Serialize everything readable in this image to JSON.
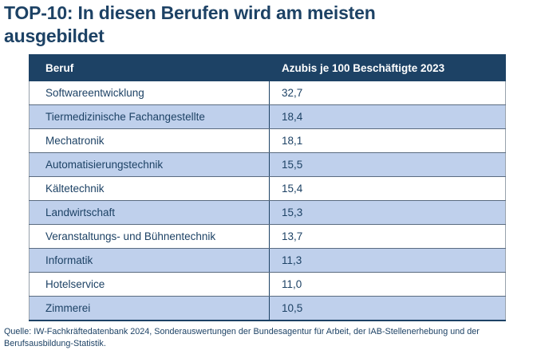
{
  "page": {
    "title": "TOP-10: In diesen Berufen wird am meisten ausgebildet",
    "source": "Quelle: IW-Fachkräftedatenbank 2024, Sonderauswertungen der Bundesagentur für Arbeit, der IAB-Stellenerhebung und der Berufsausbildung-Statistik."
  },
  "colors": {
    "navy": "#1d4265",
    "lightblue": "#bfd0ec",
    "row_border": "#5a6b80",
    "outer_border": "#97a1ac"
  },
  "table": {
    "headers": [
      "Beruf",
      "Azubis je 100 Beschäftigte 2023"
    ],
    "rows": [
      {
        "beruf": "Softwareentwicklung",
        "value": "32,7"
      },
      {
        "beruf": "Tiermedizinische Fachangestellte",
        "value": "18,4"
      },
      {
        "beruf": "Mechatronik",
        "value": "18,1"
      },
      {
        "beruf": "Automatisierungstechnik",
        "value": "15,5"
      },
      {
        "beruf": "Kältetechnik",
        "value": "15,4"
      },
      {
        "beruf": "Landwirtschaft",
        "value": "15,3"
      },
      {
        "beruf": "Veranstaltungs- und Bühnentechnik",
        "value": "13,7"
      },
      {
        "beruf": "Informatik",
        "value": "11,3"
      },
      {
        "beruf": "Hotelservice",
        "value": "11,0"
      },
      {
        "beruf": "Zimmerei",
        "value": "10,5"
      }
    ]
  },
  "chart_data": {
    "type": "table",
    "title": "TOP-10: In diesen Berufen wird am meisten ausgebildet",
    "columns": [
      "Beruf",
      "Azubis je 100 Beschäftigte 2023"
    ],
    "categories": [
      "Softwareentwicklung",
      "Tiermedizinische Fachangestellte",
      "Mechatronik",
      "Automatisierungstechnik",
      "Kältetechnik",
      "Landwirtschaft",
      "Veranstaltungs- und Bühnentechnik",
      "Informatik",
      "Hotelservice",
      "Zimmerei"
    ],
    "values": [
      32.7,
      18.4,
      18.1,
      15.5,
      15.4,
      15.3,
      13.7,
      11.3,
      11.0,
      10.5
    ],
    "source": "Quelle: IW-Fachkräftedatenbank 2024, Sonderauswertungen der Bundesagentur für Arbeit, der IAB-Stellenerhebung und der Berufsausbildung-Statistik."
  }
}
